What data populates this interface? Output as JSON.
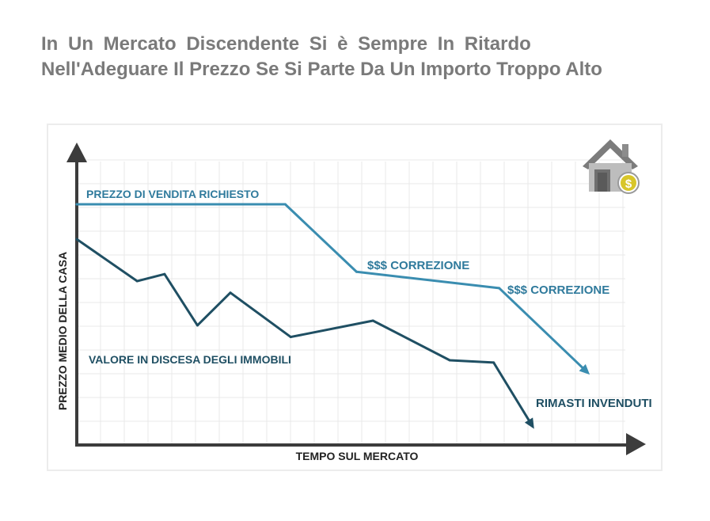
{
  "title": {
    "line1": "In Un Mercato Discendente Si è Sempre In Ritardo",
    "line2": "Nell'Adeguare Il Prezzo Se Si Parte Da Un Importo Troppo Alto"
  },
  "colors": {
    "asking": "#3a8db0",
    "value": "#1f4f63",
    "axis": "#3c3c3c",
    "grid": "#e9e9e9",
    "title": "#7a7a7a",
    "asking_label": "#2f7a9c",
    "value_label": "#1f4f63",
    "icon_dollar": "#d8c62a"
  },
  "icons": [
    "house-dollar-icon"
  ],
  "chart_data": {
    "type": "line",
    "title": "",
    "xlabel": "TEMPO SUL MERCATO",
    "ylabel": "PREZZO MEDIO DELLA CASA",
    "xlim": [
      0,
      100
    ],
    "ylim": [
      0,
      100
    ],
    "grid": true,
    "series": [
      {
        "name": "PREZZO DI VENDITA RICHIESTO",
        "x": [
          0,
          38,
          51,
          77,
          93
        ],
        "y": [
          100,
          100,
          71,
          64,
          28
        ],
        "arrow_end": true
      },
      {
        "name": "VALORE IN DISCESA DEGLI IMMOBILI",
        "x": [
          0,
          11,
          16,
          22,
          28,
          39,
          54,
          68,
          76,
          83
        ],
        "y": [
          85,
          67,
          70,
          48,
          62,
          43,
          50,
          33,
          32,
          5
        ],
        "arrow_end": true
      }
    ],
    "annotations": [
      {
        "text": "$$$ CORREZIONE",
        "x": 51,
        "y": 71
      },
      {
        "text": "$$$ CORREZIONE",
        "x": 77,
        "y": 64
      },
      {
        "text": "RIMASTI INVENDUTI",
        "x": 93,
        "y": 28
      }
    ]
  }
}
